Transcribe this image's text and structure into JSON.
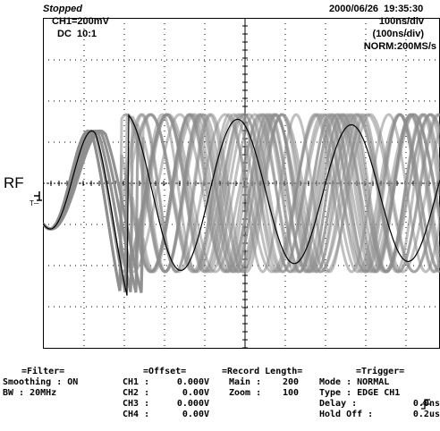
{
  "header": {
    "status": "Stopped",
    "datetime": "2000/06/26  19:35:30",
    "ch1_scale": "CH1=200mV",
    "ch1_coupling": "DC  10:1",
    "timebase": "100ns/div",
    "timebase_main": "(100ns/div)",
    "sample_mode": "NORM:200MS/s"
  },
  "markers": {
    "channel_label": "RF",
    "trigger_marker": "T"
  },
  "colors": {
    "background": "#ffffff",
    "grid": "#000000",
    "trace_band": "#8c8c8c",
    "trace_dark": "#000000"
  },
  "filter": {
    "title": "=Filter=",
    "smoothing": "Smoothing : ON",
    "bw": "BW : 20MHz"
  },
  "offset": {
    "title": "=Offset=",
    "rows": [
      {
        "label": "CH1 :",
        "value": "0.000V"
      },
      {
        "label": "CH2 :",
        "value": "0.00V"
      },
      {
        "label": "CH3 :",
        "value": "0.000V"
      },
      {
        "label": "CH4 :",
        "value": "0.00V"
      }
    ]
  },
  "record": {
    "title": "=Record Length=",
    "main_label": "Main :",
    "main_value": "200",
    "zoom_label": "Zoom :",
    "zoom_value": "100"
  },
  "trigger": {
    "title": "=Trigger=",
    "mode": "Mode : NORMAL",
    "type": "Type : EDGE CH1",
    "delay_label": "Delay :",
    "delay_value": "0.0ns",
    "holdoff_label": "Hold Off :",
    "holdoff_value": "0.2us"
  },
  "icons": [
    "rising-edge-icon",
    "ground-marker-icon",
    "trigger-marker-icon"
  ]
}
